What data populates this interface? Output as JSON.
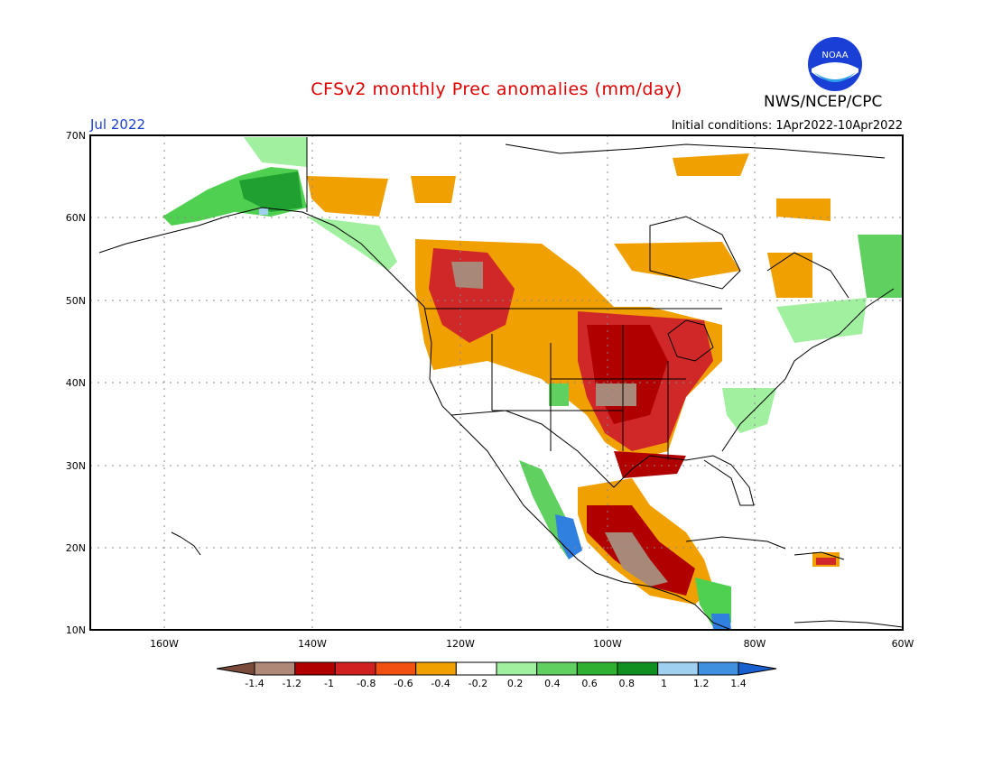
{
  "header": {
    "title": "CFSv2 monthly Prec anomalies (mm/day)",
    "agency": "NWS/NCEP/CPC",
    "valid_month": "Jul 2022",
    "initial_conditions": "Initial conditions: 1Apr2022-10Apr2022",
    "logo_text": "NOAA"
  },
  "map": {
    "lat_labels": [
      "70N",
      "60N",
      "50N",
      "40N",
      "30N",
      "20N",
      "10N"
    ],
    "lon_labels": [
      "160W",
      "140W",
      "120W",
      "100W",
      "80W",
      "60W"
    ],
    "region": "North America"
  },
  "colorbar": {
    "labels": [
      "-1.4",
      "-1.2",
      "-1",
      "-0.8",
      "-0.6",
      "-0.4",
      "-0.2",
      "0.2",
      "0.4",
      "0.6",
      "0.8",
      "1",
      "1.2",
      "1.4"
    ],
    "colors": [
      "#7a4a3a",
      "#b08878",
      "#b00000",
      "#d02020",
      "#f05010",
      "#f0a000",
      "#ffffff",
      "#a0f0a0",
      "#60d060",
      "#30b030",
      "#109020",
      "#a0d0f0",
      "#4090e0",
      "#1860d0"
    ]
  },
  "anomaly_colors": {
    "brown": "#a88878",
    "dark_red": "#b00000",
    "red": "#d02828",
    "orange": "#f0a000",
    "light_green": "#a0f0a0",
    "green": "#50d050",
    "dark_green": "#20a030",
    "light_blue": "#a0d0f0",
    "blue": "#3080e0"
  }
}
